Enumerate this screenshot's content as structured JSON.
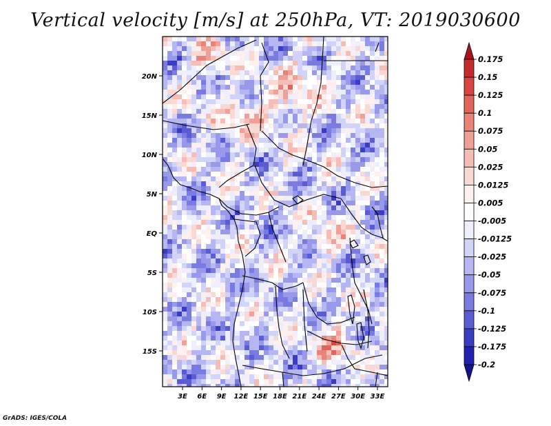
{
  "title": "Vertical velocity [m/s] at 250hPa, VT: 2019030600",
  "credit": "GrADS: IGES/COLA",
  "map": {
    "lat_labels": [
      "20N",
      "15N",
      "10N",
      "5N",
      "EQ",
      "5S",
      "10S",
      "15S"
    ],
    "lon_labels": [
      "3E",
      "6E",
      "9E",
      "12E",
      "15E",
      "18E",
      "21E",
      "24E",
      "27E",
      "30E",
      "33E"
    ]
  },
  "colorbar": {
    "levels": [
      "0.175",
      "0.15",
      "0.125",
      "0.1",
      "0.075",
      "0.05",
      "0.025",
      "0.0125",
      "0.005",
      "-0.005",
      "-0.0125",
      "-0.025",
      "-0.05",
      "-0.075",
      "-0.1",
      "-0.125",
      "-0.175",
      "-0.2"
    ],
    "colors": [
      "#a8141e",
      "#c42b2b",
      "#d9453f",
      "#e36558",
      "#ea8378",
      "#f0a097",
      "#f6bdb6",
      "#fad9d4",
      "#fdf0ee",
      "#ffffff",
      "#eeeefc",
      "#d2d3f8",
      "#b5b6f2",
      "#9899ea",
      "#7a7be0",
      "#5b5cd4",
      "#3b3cc4",
      "#2222ae",
      "#14148f"
    ]
  }
}
